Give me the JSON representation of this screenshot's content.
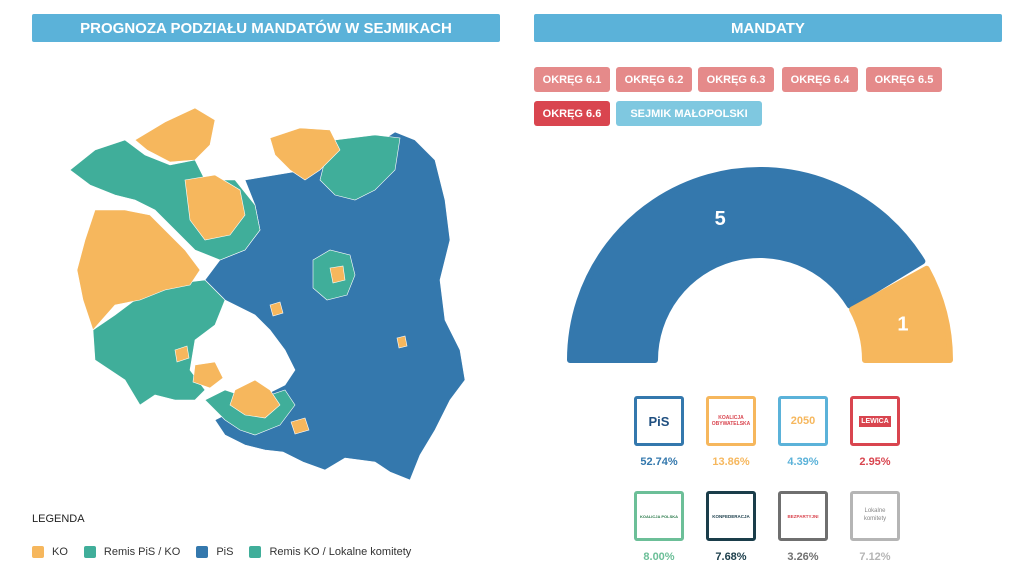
{
  "header": {
    "left_title": "PROGNOZA PODZIAŁU MANDATÓW W SEJMIKACH",
    "right_title": "MANDATY"
  },
  "legend": {
    "title": "LEGENDA",
    "items": [
      {
        "label": "KO",
        "color": "#f6b75d"
      },
      {
        "label": "Remis PiS / KO",
        "color": "#40ae9a"
      },
      {
        "label": "PiS",
        "color": "#3478ad"
      },
      {
        "label": "Remis KO / Lokalne komitety",
        "color": "#40ae9a"
      }
    ]
  },
  "districts": [
    {
      "label": "OKRĘG 6.1",
      "state": "inactive"
    },
    {
      "label": "OKRĘG 6.2",
      "state": "inactive"
    },
    {
      "label": "OKRĘG 6.3",
      "state": "inactive"
    },
    {
      "label": "OKRĘG 6.4",
      "state": "inactive"
    },
    {
      "label": "OKRĘG 6.5",
      "state": "inactive"
    },
    {
      "label": "OKRĘG 6.6",
      "state": "active"
    },
    {
      "label": "SEJMIK MAŁOPOLSKI",
      "state": "other"
    }
  ],
  "seats": {
    "segments": [
      {
        "party": "PiS",
        "value": 5,
        "color": "#3478ad"
      },
      {
        "party": "KO",
        "value": 1,
        "color": "#f6b75d"
      }
    ]
  },
  "parties": [
    {
      "name": "PiS",
      "logo_text": "PiS",
      "percent": "52.74%",
      "color": "#3478ad"
    },
    {
      "name": "Koalicja Obywatelska",
      "logo_text": "KOALICJA OBYWATELSKA",
      "percent": "13.86%",
      "color": "#f6b75d"
    },
    {
      "name": "Polska 2050",
      "logo_text": "2050",
      "percent": "4.39%",
      "color": "#5bb2d9"
    },
    {
      "name": "Lewica",
      "logo_text": "LEWICA",
      "percent": "2.95%",
      "color": "#d9454f"
    },
    {
      "name": "Koalicja Polska",
      "logo_text": "KOALICJA POLSKA",
      "percent": "8.00%",
      "color": "#6cbf98"
    },
    {
      "name": "Konfederacja",
      "logo_text": "KONFEDERACJA",
      "percent": "7.68%",
      "color": "#1a3d4a"
    },
    {
      "name": "Bezpartyjni",
      "logo_text": "BEZPARTYJNI",
      "percent": "3.26%",
      "color": "#6f6f6f"
    },
    {
      "name": "Lokalne komitety",
      "logo_text": "Lokalne komitety",
      "percent": "7.12%",
      "color": "#b5b5b5"
    }
  ]
}
